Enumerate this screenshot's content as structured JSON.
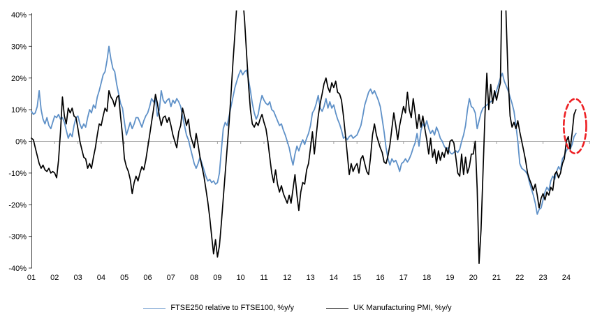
{
  "page": {
    "background": "#ffffff"
  },
  "legend": [
    {
      "label": "FTSE250 relative to FTSE100, %y/y",
      "color": "#5f91c8"
    },
    {
      "label": "UK Manufacturing PMI, %y/y",
      "color": "#000000"
    }
  ],
  "chart_data": {
    "type": "line",
    "title": "",
    "xlabel": "",
    "ylabel": "",
    "x_start": "2001-01",
    "x_frequency": "monthly",
    "x_tick_labels": [
      "01",
      "02",
      "03",
      "04",
      "05",
      "06",
      "07",
      "08",
      "09",
      "10",
      "11",
      "12",
      "13",
      "14",
      "15",
      "16",
      "17",
      "18",
      "19",
      "20",
      "21",
      "22",
      "23",
      "24"
    ],
    "y_tick_values": [
      40,
      30,
      20,
      10,
      0,
      -10,
      -20,
      -30,
      -40
    ],
    "y_tick_labels": [
      "40%",
      "30%",
      "20%",
      "10%",
      "0%",
      "-10%",
      "-20%",
      "-30%",
      "-40%"
    ],
    "ylim": [
      -40,
      40
    ],
    "grid": "zero-line-only",
    "axis_color": "#404040",
    "zero_line_color": "#a3a3a3",
    "legend_position": "bottom",
    "series": [
      {
        "name": "FTSE250 relative to FTSE100, %y/y",
        "color": "#5f91c8",
        "values": [
          9.5,
          8.5,
          9,
          11,
          16,
          10,
          7,
          5.5,
          7.5,
          5,
          4,
          6,
          8,
          7.5,
          8.5,
          7,
          7.5,
          6,
          3.5,
          1,
          2.5,
          1.5,
          5,
          7.5,
          8,
          5.5,
          4,
          5.5,
          4.5,
          7.5,
          10,
          9,
          11.5,
          10.5,
          14,
          16,
          18.5,
          21,
          22,
          25.5,
          30,
          26,
          23,
          22,
          18,
          15,
          12,
          10.5,
          6,
          2,
          4,
          6,
          4,
          5.5,
          7.5,
          7.5,
          6,
          4.5,
          6.5,
          8,
          9,
          11,
          13.5,
          12.5,
          13.5,
          8,
          10,
          16,
          13,
          12,
          13,
          13.5,
          11,
          13,
          12,
          13.5,
          12.5,
          11,
          8,
          5,
          2,
          0.5,
          -2,
          -4.5,
          -7,
          -8.5,
          -7,
          -5,
          -7,
          -9,
          -11,
          -12.5,
          -12,
          -13,
          -12.5,
          -13.5,
          -13,
          -10,
          -3,
          4,
          6,
          5,
          8,
          11,
          14,
          17,
          19,
          21,
          22.5,
          21,
          22,
          22.5,
          19.5,
          16,
          12,
          9,
          7,
          8.5,
          12,
          14.5,
          13,
          12,
          11.5,
          12.5,
          10,
          9.5,
          8,
          6.5,
          5,
          5.5,
          3.5,
          2,
          0,
          -2,
          -5,
          -7.5,
          -4,
          -1.5,
          -3,
          -1,
          0.5,
          -1,
          1,
          2.5,
          5,
          9,
          10,
          12,
          14.5,
          10.5,
          9.5,
          11,
          13.5,
          10.5,
          12.5,
          10.5,
          11.5,
          9,
          7,
          5.5,
          3.5,
          1,
          1.5,
          0.5,
          1.5,
          2,
          1,
          1.5,
          2,
          3.5,
          5,
          8,
          11.5,
          13.5,
          15.5,
          16.5,
          15,
          16,
          14.5,
          13,
          11,
          7,
          3,
          -2,
          -5.5,
          -7.5,
          -5.5,
          -6.5,
          -6,
          -7.5,
          -9.5,
          -7,
          -6.5,
          -5.5,
          -6.5,
          -5.5,
          -4,
          -2,
          -0.5,
          2.5,
          -1.5,
          3.5,
          5.5,
          4.5,
          6.5,
          4,
          2.5,
          3.5,
          2,
          4.5,
          3,
          1,
          0,
          -1.5,
          -2.5,
          -2,
          -3.5,
          -4,
          -3.5,
          -3,
          -3.5,
          -2.5,
          0,
          2,
          5,
          10,
          13.5,
          11,
          10.5,
          9,
          4,
          6.5,
          9,
          10.5,
          11,
          11.5,
          12,
          12.5,
          13,
          14.5,
          16,
          18,
          20,
          21.5,
          19,
          17.5,
          16,
          14,
          12,
          9.5,
          5,
          0,
          -7,
          -8.5,
          -9,
          -9.5,
          -10.5,
          -13,
          -15,
          -17,
          -19.5,
          -23,
          -21.5,
          -21,
          -18.5,
          -16,
          -14.5,
          -15.5,
          -12.5,
          -11,
          -12,
          -9.5,
          -8,
          -9,
          -5.5,
          -4.5,
          -3,
          -2,
          -2.5,
          -1,
          1.5,
          2.5
        ]
      },
      {
        "name": "UK Manufacturing PMI, %y/y",
        "color": "#000000",
        "values": [
          1,
          0.5,
          -2,
          -4.5,
          -7,
          -8.5,
          -7.5,
          -9,
          -9.5,
          -8.5,
          -10,
          -9.5,
          -10,
          -11.5,
          -6,
          3,
          14,
          8,
          5.5,
          10.5,
          9,
          10.5,
          8,
          7.5,
          4,
          0,
          -2.5,
          -5,
          -5.5,
          -8.5,
          -7,
          -8.5,
          -5,
          -2,
          2,
          5.5,
          5,
          8,
          10.5,
          9.5,
          16,
          14,
          13,
          11,
          13.8,
          14.5,
          8,
          2,
          -5.5,
          -8,
          -9.5,
          -12,
          -16.5,
          -13,
          -11,
          -12.5,
          -10,
          -8,
          -9,
          -6,
          -2,
          2,
          6,
          10,
          14.8,
          12,
          8,
          5,
          7.5,
          8,
          6,
          7.5,
          5,
          2,
          0,
          -2,
          3,
          5,
          10.5,
          8,
          5,
          7,
          2,
          0,
          -2,
          2.5,
          -1,
          -5,
          -8,
          -11,
          -15,
          -19,
          -24,
          -30,
          -35.5,
          -31,
          -36.5,
          -33,
          -26,
          -18,
          -10,
          -2,
          6,
          15,
          25,
          34,
          43,
          50,
          52,
          46,
          38,
          28,
          18,
          10,
          5.5,
          4.5,
          6,
          5,
          7,
          8.5,
          6,
          4,
          0,
          -5,
          -10,
          -13,
          -9,
          -13.5,
          -16,
          -14,
          -16.5,
          -18,
          -19.5,
          -17,
          -19.5,
          -15,
          -10.5,
          -17,
          -21.8,
          -16,
          -13,
          -13.5,
          -9,
          -7,
          -2,
          3,
          -4,
          2,
          8,
          12,
          15,
          18.2,
          20,
          17,
          15.5,
          18.5,
          17,
          19,
          15.5,
          15,
          13,
          8,
          2,
          -4,
          -10.5,
          -7,
          -9.5,
          -8,
          -7,
          -10,
          -5.5,
          -4.5,
          -7,
          -9.5,
          -10.5,
          -5,
          2,
          5.5,
          2,
          0,
          -2,
          -3.5,
          -6.5,
          -7,
          -4.5,
          -1,
          4,
          9,
          5,
          0.5,
          5,
          8,
          11,
          9,
          15.5,
          10,
          7.5,
          13.5,
          9,
          4,
          8.5,
          4.5,
          8,
          4,
          0.5,
          -4,
          1,
          -5,
          -2.5,
          -7,
          -3,
          -6,
          -3.5,
          -5,
          -2,
          -4,
          0,
          0.5,
          -0.5,
          -5,
          -10,
          -11,
          -4,
          -10.5,
          -5,
          -10,
          -8,
          -4,
          -4,
          0,
          -15,
          -38.5,
          -28,
          -10,
          8,
          21.5,
          10,
          18,
          12,
          16,
          13,
          16,
          18.5,
          55,
          60,
          38,
          20,
          8,
          4.5,
          6,
          4,
          6.5,
          3,
          0,
          -3,
          -6,
          -10,
          -12,
          -13.5,
          -15.5,
          -13.5,
          -17,
          -21,
          -18,
          -16.5,
          -18.5,
          -16,
          -17,
          -14.5,
          -15.5,
          -10.5,
          -9.5,
          -11.5,
          -10,
          -7,
          -5.5,
          0,
          1.5,
          -2.5,
          2.5,
          8.5,
          10
        ]
      }
    ],
    "annotation": {
      "shape": "dashed-ellipse",
      "color": "#ed2024",
      "center_month_index": 280.5,
      "center_value": 4.8,
      "radius_months": 5.8,
      "radius_value": 8.6
    }
  }
}
